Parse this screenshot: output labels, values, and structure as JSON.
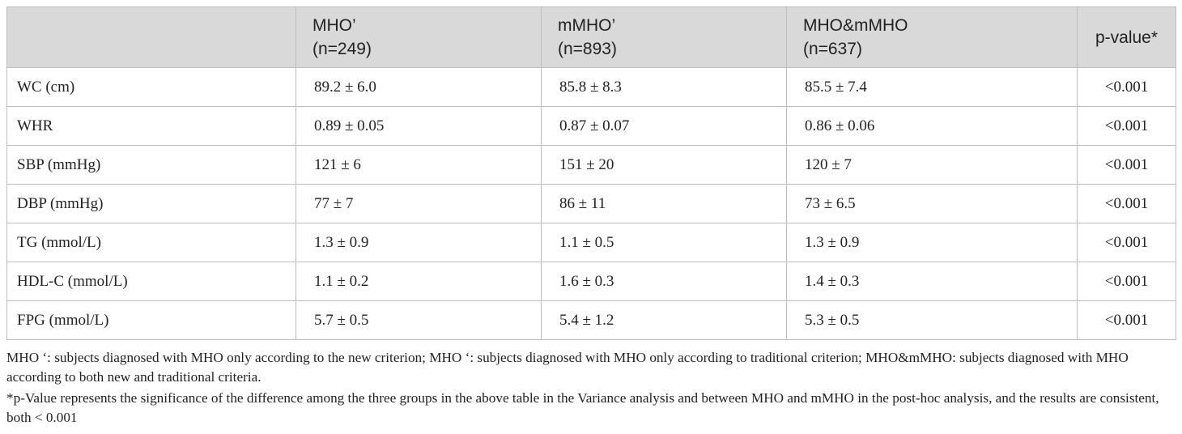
{
  "table": {
    "headers": [
      {
        "line1": "",
        "line2": ""
      },
      {
        "line1": "MHO’",
        "line2": "(n=249)"
      },
      {
        "line1": "mMHO’",
        "line2": "(n=893)"
      },
      {
        "line1": "MHO&mMHO",
        "line2": "(n=637)"
      },
      {
        "line1": "p-value*",
        "line2": ""
      }
    ],
    "rows": [
      {
        "label": "WC (cm)",
        "mho": "89.2 ± 6.0",
        "mmho": "85.8 ± 8.3",
        "both": "85.5 ± 7.4",
        "p": "<0.001"
      },
      {
        "label": "WHR",
        "mho": "0.89 ± 0.05",
        "mmho": "0.87 ± 0.07",
        "both": "0.86 ± 0.06",
        "p": "<0.001"
      },
      {
        "label": "SBP (mmHg)",
        "mho": "121 ± 6",
        "mmho": "151 ± 20",
        "both": "120 ± 7",
        "p": "<0.001"
      },
      {
        "label": "DBP (mmHg)",
        "mho": "77 ± 7",
        "mmho": "86 ± 11",
        "both": "73 ± 6.5",
        "p": "<0.001"
      },
      {
        "label": "TG (mmol/L)",
        "mho": "1.3 ± 0.9",
        "mmho": "1.1 ± 0.5",
        "both": "1.3 ± 0.9",
        "p": "<0.001"
      },
      {
        "label": "HDL-C (mmol/L)",
        "mho": "1.1 ± 0.2",
        "mmho": "1.6 ± 0.3",
        "both": "1.4 ± 0.3",
        "p": "<0.001"
      },
      {
        "label": "FPG (mmol/L)",
        "mho": "5.7 ± 0.5",
        "mmho": "5.4 ± 1.2",
        "both": "5.3 ± 0.5",
        "p": "<0.001"
      }
    ]
  },
  "footnotes": [
    "MHO ‘: subjects diagnosed with MHO only according to the new criterion; MHO ‘: subjects diagnosed with MHO only according to traditional criterion; MHO&mMHO: subjects diagnosed with MHO according to both new and traditional criteria.",
    "*p-Value represents the significance of the difference among the three groups in the above table in the Variance analysis and between MHO and mMHO in the post-hoc analysis, and the results are consistent, both < 0.001"
  ]
}
